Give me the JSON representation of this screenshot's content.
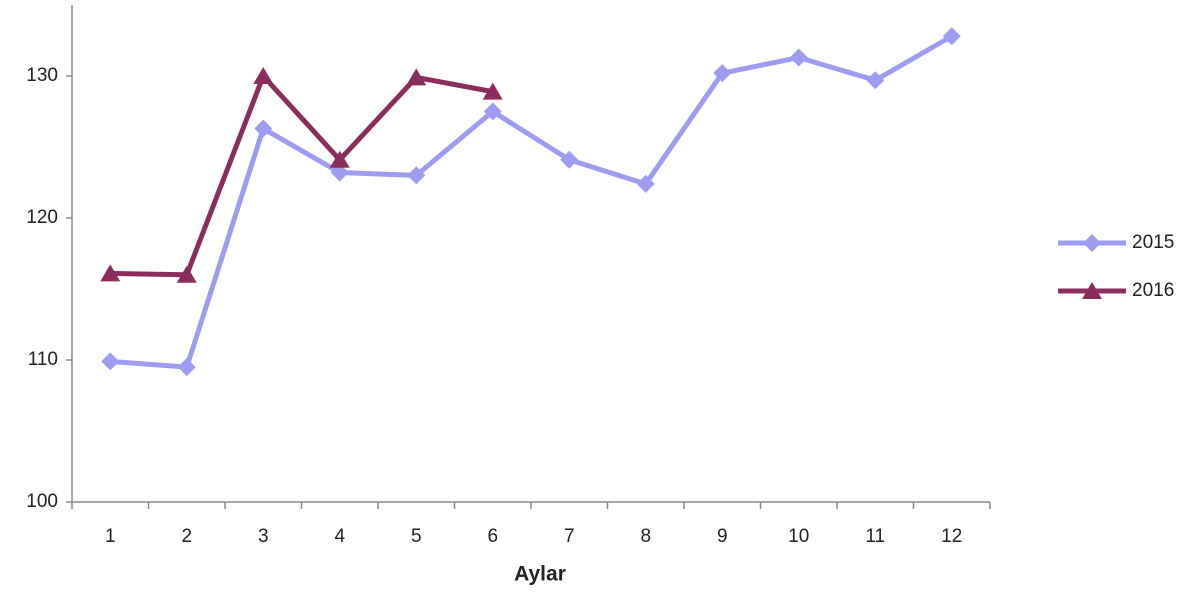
{
  "chart_data": {
    "type": "line",
    "x_label": "Aylar",
    "categories": [
      "1",
      "2",
      "3",
      "4",
      "5",
      "6",
      "7",
      "8",
      "9",
      "10",
      "11",
      "12"
    ],
    "series": [
      {
        "name": "2015",
        "color": "#9d9cf2",
        "marker": "diamond",
        "values": [
          109.9,
          109.5,
          126.3,
          123.2,
          123.0,
          127.5,
          124.1,
          122.4,
          130.2,
          131.3,
          129.7,
          132.8
        ]
      },
      {
        "name": "2016",
        "color": "#8b2d5c",
        "marker": "triangle",
        "values": [
          116.1,
          116.0,
          130.0,
          124.1,
          129.9,
          128.9,
          null,
          null,
          null,
          null,
          null,
          null
        ]
      }
    ],
    "ylim": [
      100,
      135
    ],
    "yticks": [
      100,
      110,
      120,
      130
    ],
    "grid": false,
    "legend": "right"
  }
}
